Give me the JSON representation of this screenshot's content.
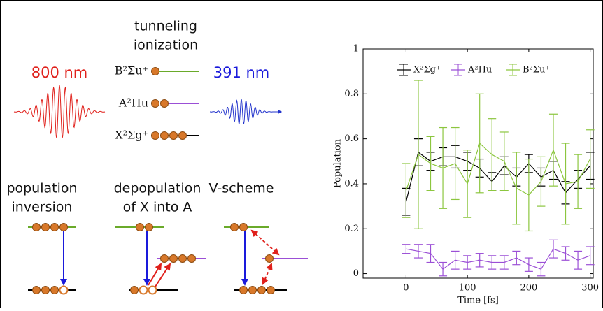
{
  "diagram": {
    "top_label": [
      "tunneling",
      "ionization"
    ],
    "pump_label": "800 nm",
    "probe_label": "391 nm",
    "states": [
      "B²Σu⁺",
      "A²Πu",
      "X²Σg⁺"
    ],
    "schemes": [
      {
        "label": [
          "population",
          "inversion"
        ]
      },
      {
        "label": [
          "depopulation",
          "of X into A"
        ]
      },
      {
        "label": [
          "V-scheme"
        ]
      }
    ]
  },
  "chart_data": {
    "type": "errorbar-line",
    "xlabel": "Time [fs]",
    "ylabel": "Population",
    "x": [
      0,
      20,
      40,
      60,
      80,
      100,
      120,
      140,
      160,
      180,
      200,
      220,
      240,
      260,
      280,
      300
    ],
    "xlim": [
      -70,
      305
    ],
    "xticks": [
      0,
      100,
      200,
      300
    ],
    "ylim": [
      -0.02,
      1.0
    ],
    "yticks": [
      0,
      0.2,
      0.4,
      0.6,
      0.8,
      1
    ],
    "legend": "top",
    "series": [
      {
        "name": "X²Σg⁺",
        "color": "#000000",
        "values": [
          0.32,
          0.54,
          0.5,
          0.52,
          0.52,
          0.5,
          0.47,
          0.41,
          0.48,
          0.43,
          0.49,
          0.43,
          0.46,
          0.36,
          0.42,
          0.48
        ],
        "errors": [
          0.06,
          0.06,
          0.04,
          0.04,
          0.05,
          0.04,
          0.04,
          0.04,
          0.04,
          0.04,
          0.04,
          0.04,
          0.04,
          0.05,
          0.04,
          0.06
        ]
      },
      {
        "name": "A²Πu",
        "color": "#9b4fd6",
        "values": [
          0.11,
          0.1,
          0.09,
          0.02,
          0.06,
          0.05,
          0.06,
          0.05,
          0.05,
          0.07,
          0.04,
          0.02,
          0.11,
          0.09,
          0.06,
          0.08
        ],
        "errors": [
          0.02,
          0.03,
          0.04,
          0.03,
          0.04,
          0.03,
          0.03,
          0.03,
          0.03,
          0.03,
          0.03,
          0.03,
          0.04,
          0.03,
          0.04,
          0.04
        ]
      },
      {
        "name": "B²Σu⁺",
        "color": "#8cc63f",
        "values": [
          0.37,
          0.53,
          0.49,
          0.47,
          0.49,
          0.4,
          0.58,
          0.53,
          0.5,
          0.38,
          0.35,
          0.41,
          0.55,
          0.4,
          0.41,
          0.51
        ],
        "errors": [
          0.12,
          0.33,
          0.12,
          0.18,
          0.16,
          0.15,
          0.22,
          0.16,
          0.13,
          0.16,
          0.16,
          0.11,
          0.16,
          0.18,
          0.12,
          0.13
        ]
      }
    ]
  }
}
